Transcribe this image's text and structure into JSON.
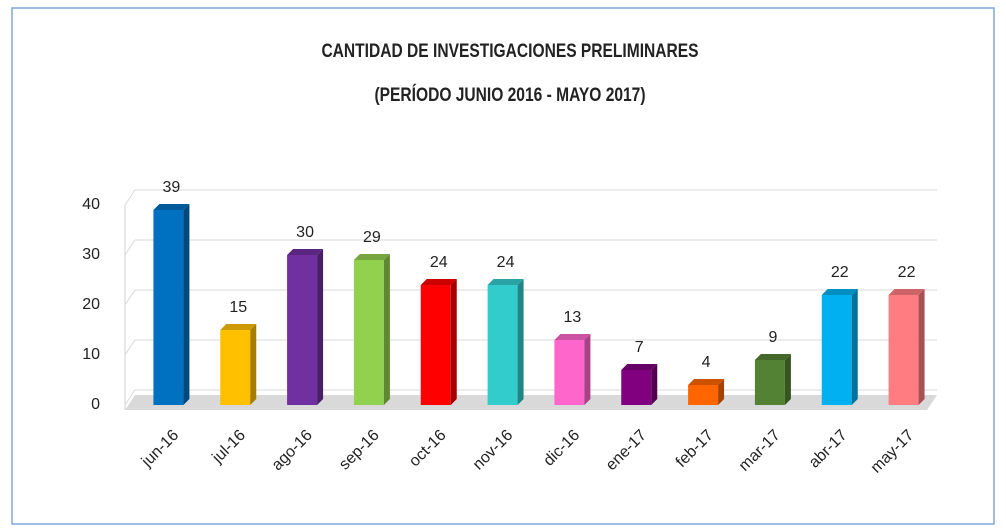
{
  "chart_data": {
    "type": "bar3d",
    "title": "CANTIDAD DE INVESTIGACIONES PRELIMINARES",
    "subtitle": "(PERÍODO  JUNIO 2016  - MAYO 2017)",
    "categories": [
      "jun-16",
      "jul-16",
      "ago-16",
      "sep-16",
      "oct-16",
      "nov-16",
      "dic-16",
      "ene-17",
      "feb-17",
      "mar-17",
      "abr-17",
      "may-17"
    ],
    "values": [
      39,
      15,
      30,
      29,
      24,
      24,
      13,
      7,
      4,
      9,
      22,
      22
    ],
    "colors": [
      "#0070c0",
      "#ffc000",
      "#7030a0",
      "#92d050",
      "#ff0000",
      "#33cccc",
      "#ff66cc",
      "#800080",
      "#ff6600",
      "#548235",
      "#00b0f0",
      "#ff7c80"
    ],
    "ylim": [
      0,
      40
    ],
    "yticks": [
      0,
      10,
      20,
      30,
      40
    ],
    "grid": true
  }
}
